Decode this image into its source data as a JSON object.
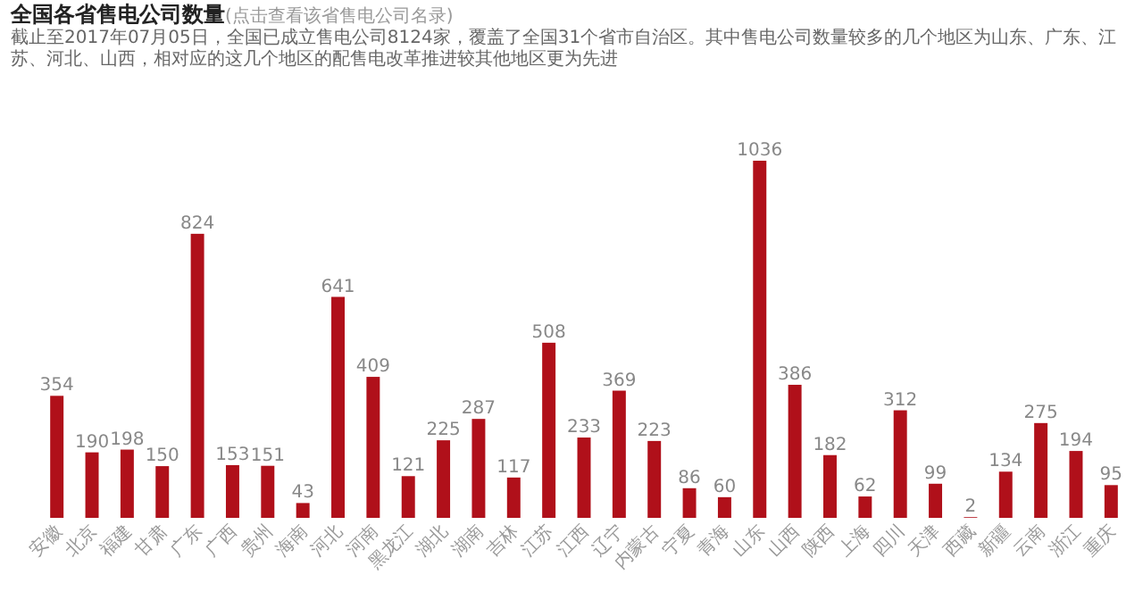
{
  "chart_data": {
    "type": "bar",
    "title": "全国各省售电公司数量",
    "subtitle": "(点击查看该省售电公司名录)",
    "annotations": [
      "截止至2017年07月05日，全国已成立售电公司8124家，覆盖了全国31个省市自治区。其中售电公司数量较多的几个地区为山东、广东、江苏、河北、山西，相对应的这几个地区的配售电改革推进较其他地区更为先进"
    ],
    "categories": [
      "安徽",
      "北京",
      "福建",
      "甘肃",
      "广东",
      "广西",
      "贵州",
      "海南",
      "河北",
      "河南",
      "黑龙江",
      "湖北",
      "湖南",
      "吉林",
      "江苏",
      "江西",
      "辽宁",
      "内蒙古",
      "宁夏",
      "青海",
      "山东",
      "山西",
      "陕西",
      "上海",
      "四川",
      "天津",
      "西藏",
      "新疆",
      "云南",
      "浙江",
      "重庆"
    ],
    "values": [
      354,
      190,
      198,
      150,
      824,
      153,
      151,
      43,
      641,
      409,
      121,
      225,
      287,
      117,
      508,
      233,
      369,
      223,
      86,
      60,
      1036,
      386,
      182,
      62,
      312,
      99,
      2,
      134,
      275,
      194,
      95
    ],
    "color": "#b0101a",
    "data_labels": true
  }
}
